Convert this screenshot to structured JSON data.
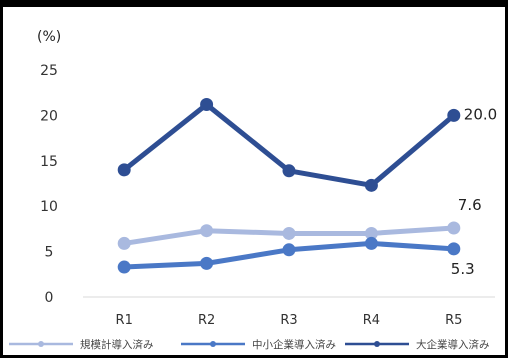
{
  "chart_data": {
    "type": "line",
    "title": "",
    "ylabel": "(%)",
    "xlabel": "",
    "categories": [
      "R1",
      "R2",
      "R3",
      "R4",
      "R5"
    ],
    "ylim": [
      0,
      25
    ],
    "yticks": [
      0,
      5,
      10,
      15,
      20,
      25
    ],
    "grid": false,
    "legend_position": "bottom",
    "series": [
      {
        "name": "規模計導入済み",
        "color": "#a9b9df",
        "values": [
          5.9,
          7.3,
          7.0,
          7.0,
          7.6
        ]
      },
      {
        "name": "中小企業導入済み",
        "color": "#4a78c6",
        "values": [
          3.3,
          3.7,
          5.2,
          5.9,
          5.3
        ]
      },
      {
        "name": "大企業導入済み",
        "color": "#2e4e93",
        "values": [
          14.0,
          21.2,
          13.9,
          12.3,
          20.0
        ]
      }
    ],
    "annotations": [
      {
        "label": "20.0"
      },
      {
        "label": "7.6"
      },
      {
        "label": "5.3"
      }
    ]
  }
}
